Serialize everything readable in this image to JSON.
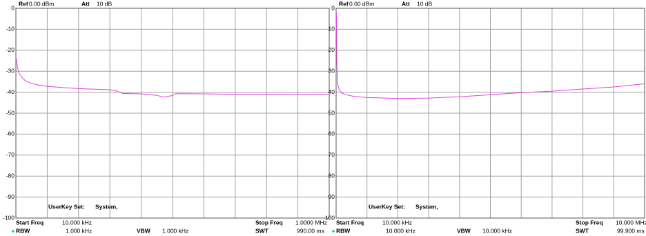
{
  "chart_data": [
    {
      "type": "line",
      "header": [
        {
          "label": "Ref",
          "value": "0.00 dBm"
        },
        {
          "label": "Att",
          "value": "10 dB"
        }
      ],
      "note": [
        "UserKey Set:",
        "System,"
      ],
      "footer": [
        {
          "label": "Start Freq",
          "value": "10.000 kHz"
        },
        {
          "label": "Stop Freq",
          "value": "1.0000 MHz"
        },
        {
          "label": "RBW",
          "value": "1.000 kHz"
        },
        {
          "label": "VBW",
          "value": "1.000 kHz"
        },
        {
          "label": "SWT",
          "value": "990.00 ms"
        }
      ],
      "xlim": [
        10000,
        1000000
      ],
      "ylim": [
        -100,
        0
      ],
      "yticks": [
        0,
        -10,
        -20,
        -30,
        -40,
        -50,
        -60,
        -70,
        -80,
        -90,
        -100
      ],
      "grid": true,
      "x": [
        10000,
        14950,
        19900,
        29800,
        39700,
        59500,
        89200,
        109000,
        158500,
        208000,
        257500,
        307000,
        326800,
        346600,
        406000,
        455500,
        475300,
        505000,
        514900,
        604000,
        703000,
        802000,
        901000,
        1000000
      ],
      "series": [
        {
          "color": "#e040e0",
          "values": [
            -23,
            -28,
            -31,
            -33,
            -34.5,
            -35.8,
            -36.8,
            -37.2,
            -37.8,
            -38.3,
            -38.6,
            -38.8,
            -39.3,
            -40.6,
            -40.8,
            -41.5,
            -42.3,
            -41.6,
            -40.7,
            -40.8,
            -41,
            -41,
            -41.1,
            -41
          ]
        }
      ]
    },
    {
      "type": "line",
      "header": [
        {
          "label": "Ref",
          "value": "0.00 dBm"
        },
        {
          "label": "Att",
          "value": "10 dB"
        }
      ],
      "note": [
        "UserKey Set:",
        "System,"
      ],
      "footer": [
        {
          "label": "Start Freq",
          "value": "10.000 kHz"
        },
        {
          "label": "Stop Freq",
          "value": "10.000 MHz"
        },
        {
          "label": "RBW",
          "value": "10.000 kHz"
        },
        {
          "label": "VBW",
          "value": "10.000 kHz"
        },
        {
          "label": "SWT",
          "value": "99.900 ms"
        }
      ],
      "xlim": [
        10000,
        10000000
      ],
      "ylim": [
        -100,
        0
      ],
      "yticks": [
        0,
        {
          "value": -10,
          "label": "10"
        },
        {
          "value": -20,
          "label": "20"
        },
        {
          "value": -30,
          "label": "30"
        },
        {
          "value": -40,
          "label": "40"
        },
        {
          "value": -50,
          "label": "50"
        },
        {
          "value": -60,
          "label": "60"
        },
        {
          "value": -70,
          "label": "70"
        },
        {
          "value": -80,
          "label": "80"
        },
        {
          "value": -90,
          "label": "90"
        },
        {
          "value": -100,
          "label": "100"
        }
      ],
      "grid": true,
      "x": [
        10000,
        19990,
        29980,
        59950,
        109900,
        209800,
        409600,
        609400,
        1009000,
        2008000,
        3007000,
        4006000,
        5005000,
        6004000,
        7003000,
        8002000,
        9001000,
        10000000
      ],
      "series": [
        {
          "color": "#e040e0",
          "values": [
            -10,
            -2,
            -25,
            -36,
            -39,
            -40.5,
            -41.5,
            -42,
            -42.5,
            -43,
            -42.8,
            -42.2,
            -41.2,
            -40.2,
            -39.5,
            -38.5,
            -37.5,
            -36
          ]
        }
      ]
    }
  ]
}
